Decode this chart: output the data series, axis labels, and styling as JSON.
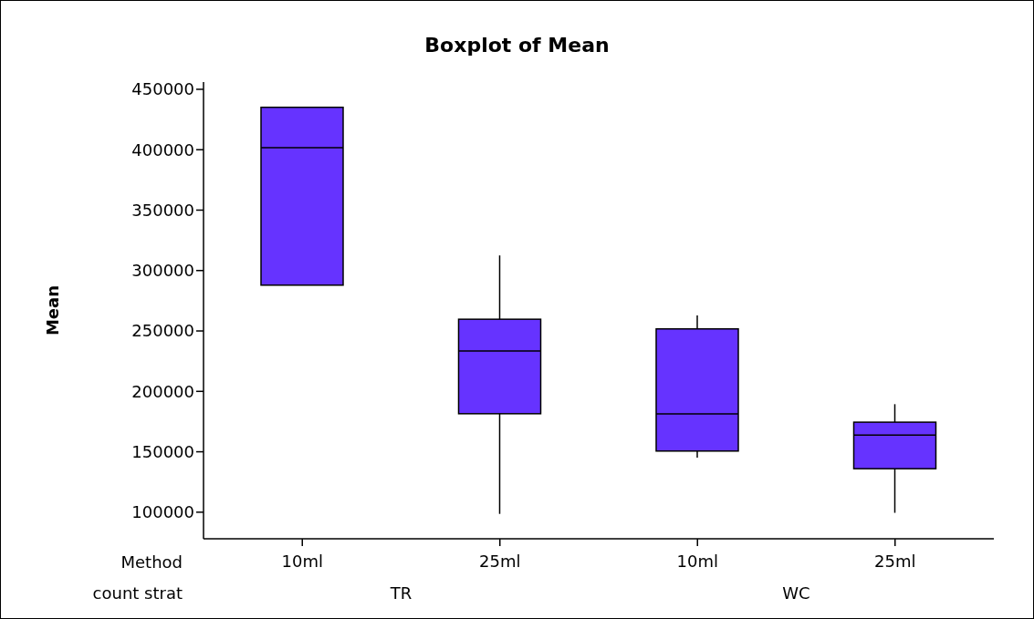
{
  "chart_data": {
    "type": "box",
    "title": "Boxplot of Mean",
    "ylabel": "Mean",
    "xlabel": "Method",
    "categories": [
      "10ml",
      "25ml",
      "10ml",
      "25ml"
    ],
    "color": "#6633ff",
    "boxes": [
      {
        "low": 287900,
        "q1": 287900,
        "median": 401600,
        "q3": 435100,
        "high": 435500
      },
      {
        "low": 98600,
        "q1": 181500,
        "median": 233500,
        "q3": 259700,
        "high": 312500
      },
      {
        "low": 145100,
        "q1": 150600,
        "median": 181300,
        "q3": 251700,
        "high": 262800
      },
      {
        "low": 99500,
        "q1": 136000,
        "median": 163900,
        "q3": 174500,
        "high": 189400
      }
    ],
    "annotations": [
      "count strat",
      "TR",
      "WC"
    ],
    "ylim": [
      78000,
      456000
    ],
    "yticks": [
      100000,
      150000,
      200000,
      250000,
      300000,
      350000,
      400000,
      450000
    ],
    "grid": false
  }
}
